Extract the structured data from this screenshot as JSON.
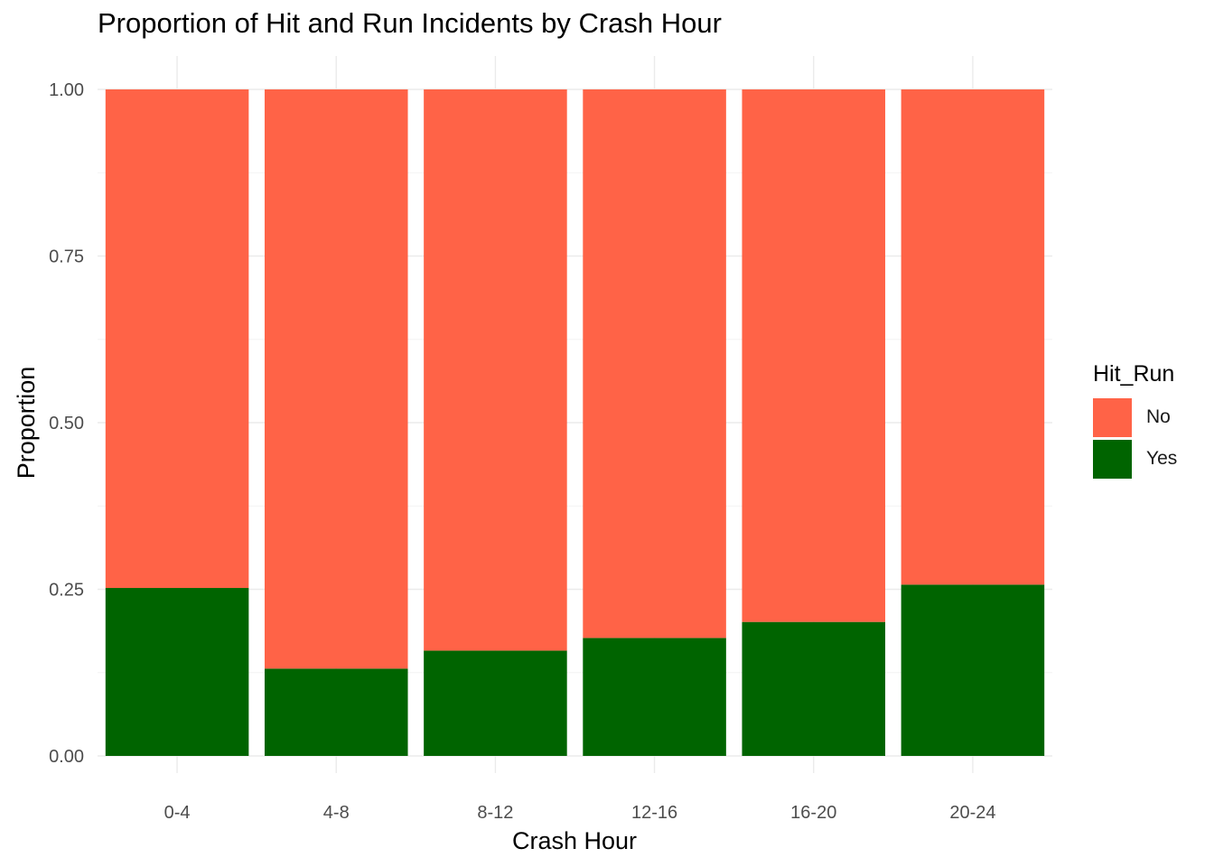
{
  "chart_data": {
    "type": "bar",
    "stacked": true,
    "title": "Proportion of Hit and Run Incidents by Crash Hour",
    "xlabel": "Crash Hour",
    "ylabel": "Proportion",
    "categories": [
      "0-4",
      "4-8",
      "8-12",
      "12-16",
      "16-20",
      "20-24"
    ],
    "series": [
      {
        "name": "Yes",
        "color": "#006400",
        "values": [
          0.252,
          0.131,
          0.158,
          0.177,
          0.201,
          0.257
        ]
      },
      {
        "name": "No",
        "color": "#FF6347",
        "values": [
          0.748,
          0.869,
          0.842,
          0.823,
          0.799,
          0.743
        ]
      }
    ],
    "ylim": [
      0,
      1
    ],
    "yticks": [
      "0.00",
      "0.25",
      "0.50",
      "0.75",
      "1.00"
    ],
    "ytick_values": [
      0,
      0.25,
      0.5,
      0.75,
      1
    ],
    "grid": true,
    "legend": {
      "title": "Hit_Run",
      "position": "right",
      "entries": [
        {
          "label": "No",
          "color": "#FF6347"
        },
        {
          "label": "Yes",
          "color": "#006400"
        }
      ]
    }
  }
}
